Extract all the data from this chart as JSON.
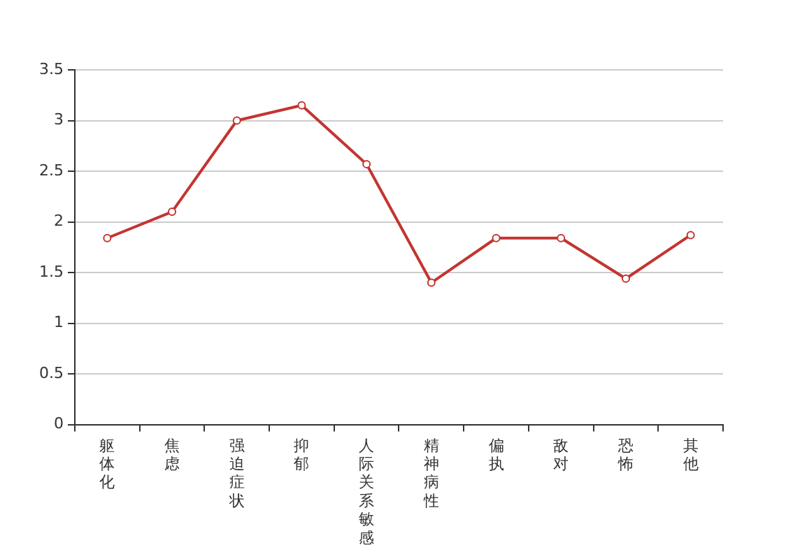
{
  "chart_data": {
    "type": "line",
    "categories": [
      "躯体化",
      "焦虑",
      "强迫症状",
      "抑郁",
      "人际关系敏感",
      "精神病性",
      "偏执",
      "敌对",
      "恐怖",
      "其他"
    ],
    "series": [
      {
        "color": "#c23531",
        "values": [
          1.84,
          2.1,
          3.0,
          3.15,
          2.57,
          1.4,
          1.84,
          1.84,
          1.44,
          1.87
        ]
      }
    ],
    "ylim": [
      0,
      3.5
    ],
    "yticks": [
      0,
      0.5,
      1,
      1.5,
      2,
      2.5,
      3,
      3.5
    ],
    "grid": "y",
    "legend": false,
    "marker": "circle",
    "line_style": "solid"
  }
}
